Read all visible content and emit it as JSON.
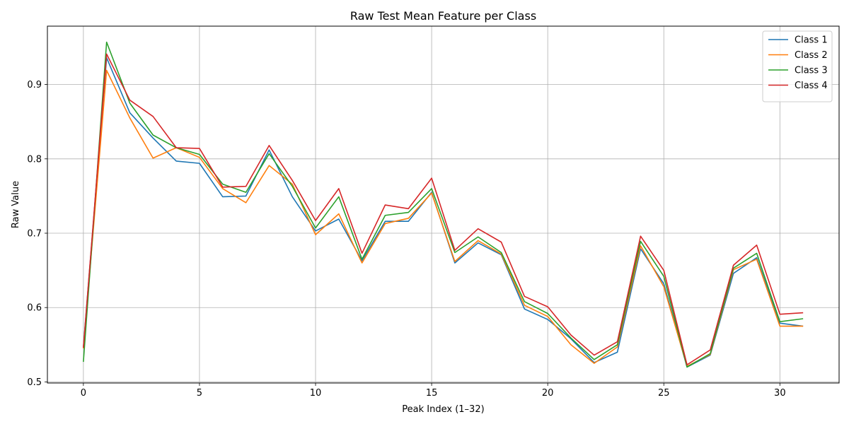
{
  "chart_data": {
    "type": "line",
    "title": "Raw Test Mean Feature per Class",
    "xlabel": "Peak Index (1–32)",
    "ylabel": "Raw Value",
    "xlim": [
      -1.55,
      32.55
    ],
    "ylim": [
      0.4985,
      0.9785
    ],
    "xticks": [
      0,
      5,
      10,
      15,
      20,
      25,
      30
    ],
    "yticks": [
      0.5,
      0.6,
      0.7,
      0.8,
      0.9
    ],
    "ytick_labels": [
      "0.5",
      "0.6",
      "0.7",
      "0.8",
      "0.9"
    ],
    "grid": true,
    "legend_position": "top-right",
    "x": [
      0,
      1,
      2,
      3,
      4,
      5,
      6,
      7,
      8,
      9,
      10,
      11,
      12,
      13,
      14,
      15,
      16,
      17,
      18,
      19,
      20,
      21,
      22,
      23,
      24,
      25,
      26,
      27,
      28,
      29,
      30,
      31
    ],
    "series": [
      {
        "name": "Class 1",
        "color": "#1f77b4",
        "values": [
          0.547,
          0.936,
          0.862,
          0.828,
          0.797,
          0.794,
          0.749,
          0.75,
          0.812,
          0.749,
          0.703,
          0.719,
          0.663,
          0.716,
          0.716,
          0.755,
          0.66,
          0.687,
          0.671,
          0.598,
          0.584,
          0.558,
          0.526,
          0.54,
          0.679,
          0.632,
          0.52,
          0.536,
          0.646,
          0.667,
          0.579,
          0.575
        ]
      },
      {
        "name": "Class 2",
        "color": "#ff7f0e",
        "values": [
          0.545,
          0.919,
          0.855,
          0.801,
          0.815,
          0.802,
          0.76,
          0.741,
          0.791,
          0.766,
          0.698,
          0.726,
          0.66,
          0.713,
          0.72,
          0.754,
          0.662,
          0.69,
          0.672,
          0.603,
          0.588,
          0.55,
          0.525,
          0.547,
          0.683,
          0.628,
          0.521,
          0.537,
          0.651,
          0.665,
          0.575,
          0.575
        ]
      },
      {
        "name": "Class 3",
        "color": "#2ca02c",
        "values": [
          0.527,
          0.957,
          0.875,
          0.832,
          0.815,
          0.806,
          0.766,
          0.755,
          0.807,
          0.763,
          0.707,
          0.749,
          0.665,
          0.724,
          0.728,
          0.76,
          0.674,
          0.695,
          0.674,
          0.608,
          0.592,
          0.559,
          0.53,
          0.55,
          0.689,
          0.642,
          0.52,
          0.538,
          0.653,
          0.673,
          0.581,
          0.585
        ]
      },
      {
        "name": "Class 4",
        "color": "#d62728",
        "values": [
          0.546,
          0.941,
          0.879,
          0.857,
          0.815,
          0.814,
          0.762,
          0.763,
          0.818,
          0.771,
          0.717,
          0.76,
          0.673,
          0.738,
          0.733,
          0.774,
          0.677,
          0.706,
          0.688,
          0.615,
          0.601,
          0.563,
          0.536,
          0.554,
          0.696,
          0.65,
          0.523,
          0.543,
          0.657,
          0.684,
          0.591,
          0.593
        ]
      }
    ]
  }
}
